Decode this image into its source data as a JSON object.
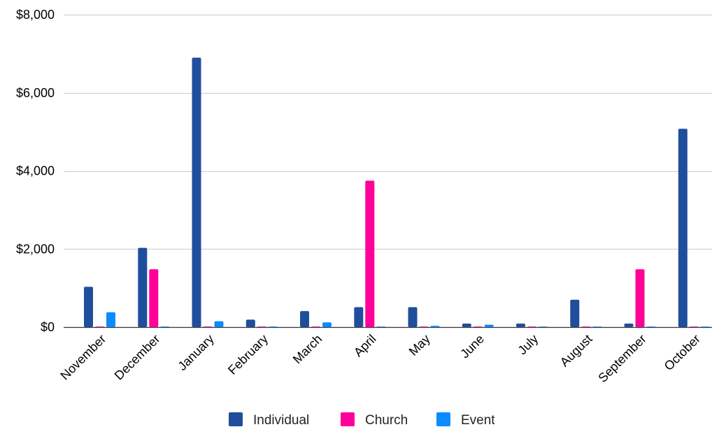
{
  "chart_data": {
    "type": "bar",
    "categories": [
      "November",
      "December",
      "January",
      "February",
      "March",
      "April",
      "May",
      "June",
      "July",
      "August",
      "September",
      "October"
    ],
    "series": [
      {
        "name": "Individual",
        "color": "#1f4e9c",
        "values": [
          1030,
          2030,
          6900,
          190,
          410,
          510,
          510,
          90,
          90,
          700,
          90,
          5080
        ]
      },
      {
        "name": "Church",
        "color": "#ff0099",
        "values": [
          0,
          1480,
          0,
          0,
          0,
          3750,
          0,
          0,
          0,
          0,
          1480,
          0
        ]
      },
      {
        "name": "Event",
        "color": "#0a8cff",
        "values": [
          380,
          0,
          150,
          0,
          120,
          0,
          30,
          60,
          0,
          0,
          0,
          0
        ]
      }
    ],
    "ylim": [
      0,
      8000
    ],
    "yticks": [
      0,
      2000,
      4000,
      6000,
      8000
    ],
    "ytick_labels": [
      "$0",
      "$2,000",
      "$4,000",
      "$6,000",
      "$8,000"
    ],
    "grid": true,
    "legend": "bottom"
  }
}
